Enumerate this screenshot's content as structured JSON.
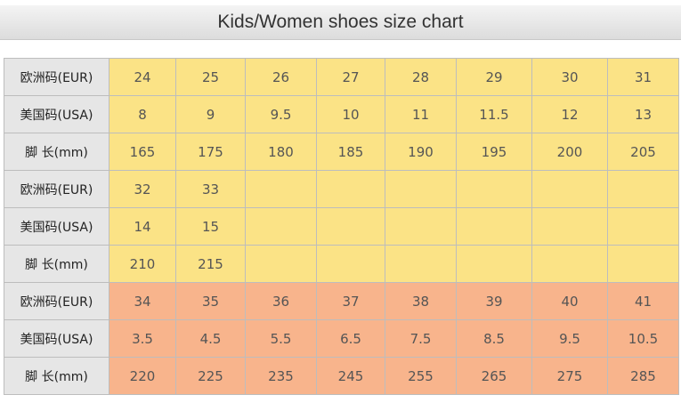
{
  "header": {
    "title": "Kids/Women shoes size chart"
  },
  "table": {
    "rows": [
      {
        "label": "欧洲码(EUR)",
        "cells": [
          "24",
          "25",
          "26",
          "27",
          "28",
          "29",
          "30",
          "31"
        ]
      },
      {
        "label": "美国码(USA)",
        "cells": [
          "8",
          "9",
          "9.5",
          "10",
          "11",
          "11.5",
          "12",
          "13"
        ]
      },
      {
        "label": "脚 长(mm)",
        "cells": [
          "165",
          "175",
          "180",
          "185",
          "190",
          "195",
          "200",
          "205"
        ]
      },
      {
        "label": "欧洲码(EUR)",
        "cells": [
          "32",
          "33"
        ]
      },
      {
        "label": "美国码(USA)",
        "cells": [
          "14",
          "15"
        ]
      },
      {
        "label": "脚 长(mm)",
        "cells": [
          "210",
          "215"
        ]
      },
      {
        "label": "欧洲码(EUR)",
        "cells": [
          "34",
          "35",
          "36",
          "37",
          "38",
          "39",
          "40",
          "41"
        ]
      },
      {
        "label": "美国码(USA)",
        "cells": [
          "3.5",
          "4.5",
          "5.5",
          "6.5",
          "7.5",
          "8.5",
          "9.5",
          "10.5"
        ]
      },
      {
        "label": "脚 长(mm)",
        "cells": [
          "220",
          "225",
          "235",
          "245",
          "255",
          "265",
          "275",
          "285"
        ]
      }
    ]
  }
}
